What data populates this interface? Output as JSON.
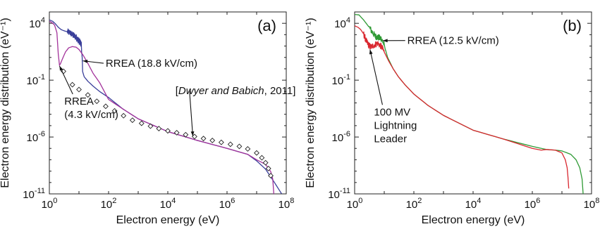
{
  "chart_data": [
    {
      "panel": "(a)",
      "type": "line",
      "xlabel": "Electron energy (eV)",
      "ylabel": "Electron energy distribution (eV⁻¹)",
      "xscale": "log",
      "yscale": "log",
      "xlim": [
        1,
        100000000
      ],
      "ylim": [
        1e-11,
        100000
      ],
      "x_ticks": [
        {
          "value": 1,
          "base": "10",
          "exp": "0"
        },
        {
          "value": 100,
          "base": "10",
          "exp": "2"
        },
        {
          "value": 10000,
          "base": "10",
          "exp": "4"
        },
        {
          "value": 1000000,
          "base": "10",
          "exp": "6"
        },
        {
          "value": 100000000,
          "base": "10",
          "exp": "8"
        }
      ],
      "y_ticks": [
        {
          "value": 10000,
          "base": "10",
          "exp": "4"
        },
        {
          "value": 0.1,
          "base": "10",
          "exp": "-1"
        },
        {
          "value": 1e-06,
          "base": "10",
          "exp": "-6"
        },
        {
          "value": 1e-11,
          "base": "10",
          "exp": "-11"
        }
      ],
      "grid": false,
      "series": [
        {
          "color": "#3a3f9a",
          "points": [
            [
              1,
              20000
            ],
            [
              1.3,
              15000
            ],
            [
              1.6,
              9000
            ],
            [
              2,
              4500
            ],
            [
              2.5,
              2800
            ],
            [
              3,
              2300
            ],
            [
              4,
              1800
            ],
            [
              5,
              1500
            ],
            [
              6,
              1000
            ],
            [
              7,
              750
            ],
            [
              8,
              600
            ],
            [
              9,
              400
            ],
            [
              10,
              280
            ],
            [
              11,
              200
            ],
            [
              12,
              140
            ],
            [
              13.5,
              0.5
            ],
            [
              15,
              0.2
            ],
            [
              20,
              0.08
            ],
            [
              30,
              0.03
            ],
            [
              50,
              0.01
            ],
            [
              100,
              0.003
            ],
            [
              300,
              0.0003
            ],
            [
              1000,
              4e-05
            ],
            [
              10000,
              3e-06
            ],
            [
              100000,
              5e-07
            ],
            [
              1000000,
              1e-07
            ],
            [
              5000000,
              3e-08
            ],
            [
              10000000,
              8e-09
            ],
            [
              20000000,
              1.5e-09
            ],
            [
              40000000,
              1e-10
            ],
            [
              70000000,
              1e-11
            ]
          ],
          "noisy_range": [
            4,
            13.5
          ]
        },
        {
          "color": "#a3339b",
          "points": [
            [
              1,
              15000
            ],
            [
              1.2,
              12000
            ],
            [
              1.5,
              7000
            ],
            [
              1.8,
              1500
            ],
            [
              2,
              20
            ],
            [
              2.2,
              2
            ],
            [
              2.4,
              3
            ],
            [
              2.8,
              8
            ],
            [
              3.5,
              30
            ],
            [
              4.5,
              70
            ],
            [
              6,
              90
            ],
            [
              8,
              80
            ],
            [
              10,
              50
            ],
            [
              14,
              15
            ],
            [
              20,
              3
            ],
            [
              30,
              0.4
            ],
            [
              50,
              0.06
            ],
            [
              100,
              0.002
            ],
            [
              300,
              0.0003
            ],
            [
              1000,
              4e-05
            ],
            [
              10000,
              3e-06
            ],
            [
              100000,
              5e-07
            ],
            [
              1000000,
              1e-07
            ],
            [
              5000000,
              3e-08
            ],
            [
              10000000,
              1e-08
            ],
            [
              20000000,
              4e-09
            ],
            [
              30000000,
              9e-10
            ],
            [
              35000000,
              2e-10
            ],
            [
              38000000,
              1e-11
            ]
          ]
        }
      ],
      "markers": [
        [
          3,
          0.6
        ],
        [
          6,
          0.04
        ],
        [
          10,
          0.015
        ],
        [
          20,
          0.005
        ],
        [
          40,
          0.0014
        ],
        [
          80,
          0.0005
        ],
        [
          160,
          0.0002
        ],
        [
          320,
          7.5e-05
        ],
        [
          640,
          3e-05
        ],
        [
          1300,
          1.6e-05
        ],
        [
          2600,
          9e-06
        ],
        [
          5000,
          5.5e-06
        ],
        [
          10000,
          3.5e-06
        ],
        [
          20000,
          2.4e-06
        ],
        [
          40000,
          1.6e-06
        ],
        [
          80000,
          1.1e-06
        ],
        [
          160000,
          7.4e-07
        ],
        [
          320000,
          5e-07
        ],
        [
          640000,
          3.4e-07
        ],
        [
          1300000,
          2.3e-07
        ],
        [
          2600000,
          1.5e-07
        ],
        [
          5000000,
          9e-08
        ],
        [
          10000000,
          4e-08
        ],
        [
          15000000,
          1.5e-08
        ],
        [
          20000000,
          5.5e-09
        ],
        [
          25000000,
          1.7e-09
        ],
        [
          30000000,
          4e-10
        ]
      ],
      "annotations": [
        {
          "lines": [
            "RREA (18.8 kV/cm)"
          ],
          "text_at": [
            80,
            1.5
          ],
          "arrow_to": [
            13.5,
            5
          ]
        },
        {
          "lines": [
            "RREA",
            "(4.3 kV/cm)"
          ],
          "text_at": [
            3.2,
            0.0007
          ],
          "arrow_to": [
            2.2,
            1.8
          ]
        },
        {
          "lines": [
            "[",
            "Dwyer and Babich",
            ", 2011]"
          ],
          "text_at": [
            18000,
            0.006
          ],
          "arrow_to": [
            70000,
            1.2e-06
          ]
        }
      ]
    },
    {
      "panel": "(b)",
      "type": "line",
      "xlabel": "Electron energy (eV)",
      "ylabel": "Electron energy distribution (eV⁻¹)",
      "xscale": "log",
      "yscale": "log",
      "xlim": [
        1,
        100000000
      ],
      "ylim": [
        1e-11,
        100000
      ],
      "x_ticks": [
        {
          "value": 1,
          "base": "10",
          "exp": "0"
        },
        {
          "value": 100,
          "base": "10",
          "exp": "2"
        },
        {
          "value": 10000,
          "base": "10",
          "exp": "4"
        },
        {
          "value": 1000000,
          "base": "10",
          "exp": "6"
        },
        {
          "value": 100000000,
          "base": "10",
          "exp": "8"
        }
      ],
      "y_ticks": [
        {
          "value": 10000,
          "base": "10",
          "exp": "4"
        },
        {
          "value": 0.1,
          "base": "10",
          "exp": "-1"
        },
        {
          "value": 1e-06,
          "base": "10",
          "exp": "-6"
        },
        {
          "value": 1e-11,
          "base": "10",
          "exp": "-11"
        }
      ],
      "grid": false,
      "series": [
        {
          "color": "#2f9a35",
          "points": [
            [
              1,
              60000
            ],
            [
              1.4,
              55000
            ],
            [
              2,
              20000
            ],
            [
              3,
              5000
            ],
            [
              4,
              1600
            ],
            [
              5,
              700
            ],
            [
              6,
              600
            ],
            [
              7,
              500
            ],
            [
              8,
              450
            ],
            [
              10,
              120
            ],
            [
              13,
              10
            ],
            [
              20,
              1
            ],
            [
              30,
              0.2
            ],
            [
              50,
              0.04
            ],
            [
              100,
              0.006
            ],
            [
              300,
              0.0006
            ],
            [
              1000,
              8e-05
            ],
            [
              10000,
              4e-06
            ],
            [
              100000,
              7e-07
            ],
            [
              1000000,
              1.5e-07
            ],
            [
              3000000,
              8e-08
            ],
            [
              6000000,
              7e-08
            ],
            [
              10000000,
              6e-08
            ],
            [
              20000000,
              3e-08
            ],
            [
              30000000,
              1e-08
            ],
            [
              40000000,
              2e-09
            ],
            [
              48000000,
              2e-10
            ],
            [
              52000000,
              1e-11
            ]
          ],
          "noisy_range": [
            3,
            11
          ]
        },
        {
          "color": "#d9272f",
          "points": [
            [
              1,
              6000
            ],
            [
              1.3,
              4500
            ],
            [
              1.6,
              2800
            ],
            [
              2,
              1200
            ],
            [
              2.5,
              250
            ],
            [
              3,
              120
            ],
            [
              3.5,
              80
            ],
            [
              4.5,
              120
            ],
            [
              6,
              180
            ],
            [
              8,
              90
            ],
            [
              10,
              30
            ],
            [
              14,
              5
            ],
            [
              20,
              1
            ],
            [
              30,
              0.2
            ],
            [
              50,
              0.04
            ],
            [
              100,
              0.006
            ],
            [
              300,
              0.0006
            ],
            [
              1000,
              8e-05
            ],
            [
              10000,
              4e-06
            ],
            [
              100000,
              7e-07
            ],
            [
              1000000,
              1e-07
            ],
            [
              2000000,
              7e-08
            ],
            [
              3000000,
              8e-08
            ],
            [
              6000000,
              7e-08
            ],
            [
              10000000,
              4e-08
            ],
            [
              13000000,
              1e-08
            ],
            [
              15000000,
              2e-09
            ],
            [
              16000000,
              3e-10
            ],
            [
              17000000,
              3e-11
            ]
          ],
          "noisy_range": [
            2,
            10
          ]
        }
      ],
      "annotations": [
        {
          "lines": [
            "RREA (12.5 kV/cm)"
          ],
          "text_at": [
            60,
            150
          ],
          "arrow_to": [
            9,
            300
          ]
        },
        {
          "lines": [
            "100 MV",
            "Lightning",
            "Leader"
          ],
          "text_at": [
            4.5,
            8e-05
          ],
          "arrow_to": [
            3.3,
            50
          ]
        }
      ]
    }
  ],
  "panel_labels": [
    "(a)",
    "(b)"
  ]
}
